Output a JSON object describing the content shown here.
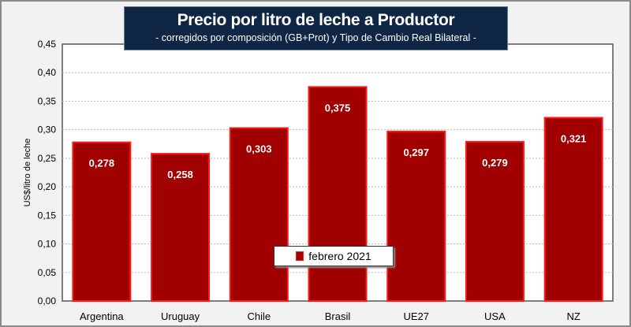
{
  "chart_data": {
    "type": "bar",
    "title": "Precio por litro de leche a Productor",
    "subtitle": "-  corregidos por composición (GB+Prot) y Tipo de Cambio Real Bilateral -",
    "xlabel": "",
    "ylabel": "US$/litro de leche",
    "ylim": [
      0,
      0.45
    ],
    "yticks": [
      "0,00",
      "0,05",
      "0,10",
      "0,15",
      "0,20",
      "0,25",
      "0,30",
      "0,35",
      "0,40",
      "0,45"
    ],
    "categories": [
      "Argentina",
      "Uruguay",
      "Chile",
      "Brasil",
      "UE27",
      "USA",
      "NZ"
    ],
    "series": [
      {
        "name": "febrero 2021",
        "values": [
          0.278,
          0.258,
          0.303,
          0.375,
          0.297,
          0.279,
          0.321
        ]
      }
    ],
    "data_labels": [
      "0,278",
      "0,258",
      "0,303",
      "0,375",
      "0,297",
      "0,279",
      "0,321"
    ],
    "grid": true,
    "legend_position": "bottom-center inside",
    "colors": {
      "bar_fill": "#a00000",
      "bar_border": "#ff1a1a",
      "title_bg": "#0f2744"
    }
  }
}
